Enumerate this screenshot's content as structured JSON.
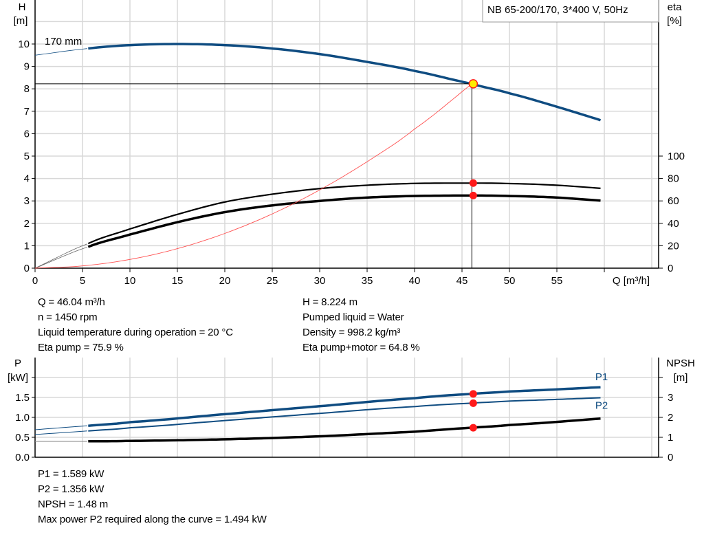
{
  "chart_data": [
    {
      "type": "line",
      "title": "NB 65-200/170, 3*400 V, 50Hz",
      "xlabel": "Q [m³/h]",
      "ylabel_left": [
        "H",
        "[m]"
      ],
      "ylabel_right": [
        "eta",
        "[%]"
      ],
      "xlim": [
        0,
        65
      ],
      "ylim_left": [
        0,
        12
      ],
      "ylim_right": [
        0,
        100
      ],
      "x_ticks": [
        0,
        5,
        10,
        15,
        20,
        25,
        30,
        35,
        40,
        45,
        50,
        55
      ],
      "y_ticks_left": [
        0,
        1,
        2,
        3,
        4,
        5,
        6,
        7,
        8,
        9,
        10
      ],
      "y_ticks_right": [
        0,
        20,
        40,
        60,
        80,
        100
      ],
      "grid": true,
      "curve_label": "170 mm",
      "series": [
        {
          "key": "head",
          "axis": "left",
          "color": "#0f4c81",
          "x": [
            0,
            5.6,
            10,
            15,
            20,
            25,
            30,
            35,
            40,
            46.04,
            50,
            55,
            60
          ],
          "y": [
            9.5,
            9.8,
            9.95,
            10.0,
            9.95,
            9.8,
            9.55,
            9.2,
            8.8,
            8.224,
            7.8,
            7.2,
            6.55
          ]
        },
        {
          "key": "eta_pump",
          "axis": "right",
          "color": "#000000",
          "x": [
            0,
            5.6,
            10,
            15,
            20,
            25,
            30,
            35,
            40,
            46.04,
            50,
            55,
            60
          ],
          "y": [
            0,
            22,
            35,
            48,
            59,
            66,
            71,
            74,
            75.6,
            75.9,
            75.5,
            74,
            71
          ]
        },
        {
          "key": "eta_pump_motor",
          "axis": "right",
          "color": "#000000",
          "x": [
            0,
            5.6,
            10,
            15,
            20,
            25,
            30,
            35,
            40,
            46.04,
            50,
            55,
            60
          ],
          "y": [
            0,
            19,
            30,
            41,
            50,
            56,
            60,
            63,
            64.4,
            64.8,
            64.4,
            63,
            60
          ]
        },
        {
          "key": "system_curve",
          "axis": "left",
          "color": "#ff5050",
          "x": [
            0,
            5,
            10,
            15,
            20,
            25,
            30,
            35,
            40,
            46.04
          ],
          "y": [
            0,
            0.1,
            0.39,
            0.87,
            1.55,
            2.42,
            3.49,
            4.75,
            6.21,
            8.224
          ]
        }
      ],
      "duty_point": {
        "q": 46.04,
        "h": 8.224,
        "eta_pump": 75.9,
        "eta_pump_motor": 64.8
      }
    },
    {
      "type": "line",
      "ylabel_left": [
        "P",
        "[kW]"
      ],
      "ylabel_right": [
        "NPSH",
        "[m]"
      ],
      "xlim": [
        0,
        65
      ],
      "ylim_left": [
        0,
        2.5
      ],
      "ylim_right": [
        0,
        5
      ],
      "y_ticks_left": [
        "0.0",
        "0.5",
        "1.0",
        "1.5"
      ],
      "y_ticks_right": [
        "0",
        "1",
        "2",
        "3"
      ],
      "grid": true,
      "series": [
        {
          "name": "P1",
          "axis": "left",
          "color": "#0f4c81",
          "x": [
            0,
            5.6,
            10,
            20,
            30,
            40,
            46.04,
            50,
            60
          ],
          "y": [
            0.69,
            0.79,
            0.88,
            1.08,
            1.28,
            1.48,
            1.589,
            1.65,
            1.76
          ]
        },
        {
          "name": "P2",
          "axis": "left",
          "color": "#0f4c81",
          "x": [
            0,
            5.6,
            10,
            20,
            30,
            40,
            46.04,
            50,
            60
          ],
          "y": [
            0.57,
            0.66,
            0.74,
            0.92,
            1.1,
            1.27,
            1.356,
            1.41,
            1.494
          ]
        },
        {
          "key": "npsh",
          "axis": "right",
          "color": "#000000",
          "x": [
            0,
            5.6,
            10,
            20,
            30,
            40,
            46.04,
            50,
            60
          ],
          "y": [
            0.8,
            0.8,
            0.82,
            0.9,
            1.05,
            1.28,
            1.48,
            1.62,
            1.95
          ]
        }
      ],
      "duty_point": {
        "q": 46.04,
        "p1": 1.589,
        "p2": 1.356,
        "npsh": 1.48
      }
    }
  ],
  "info_top": {
    "left": [
      "Q = 46.04 m³/h",
      "n = 1450 rpm",
      "Liquid temperature during operation = 20 °C",
      "Eta pump = 75.9 %"
    ],
    "right": [
      "H = 8.224 m",
      "Pumped liquid = Water",
      "Density = 998.2 kg/m³",
      "Eta pump+motor = 64.8 %"
    ]
  },
  "info_bottom": [
    "P1 = 1.589 kW",
    "P2 = 1.356 kW",
    "NPSH = 1.48 m",
    "Max power P2 required along the curve = 1.494 kW"
  ]
}
